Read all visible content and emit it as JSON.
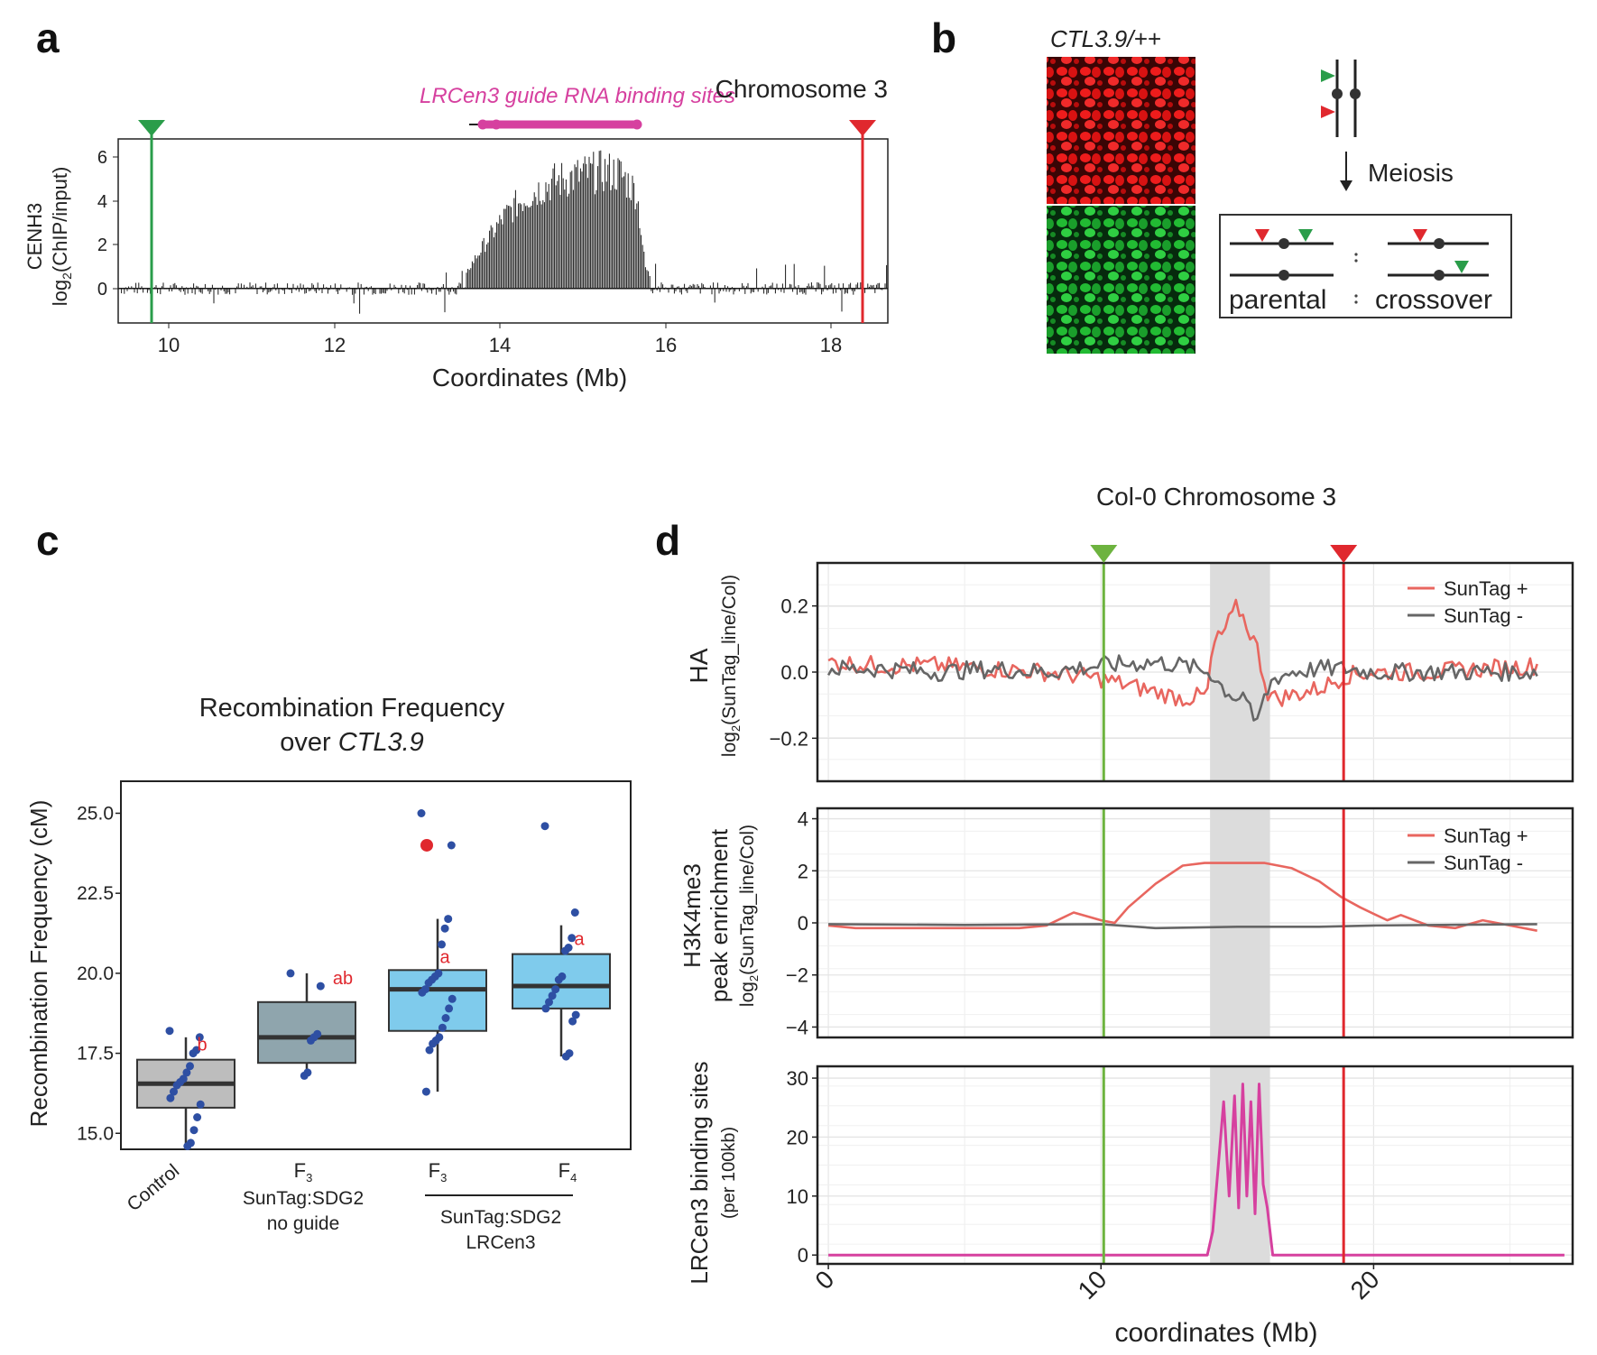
{
  "panel_labels": {
    "a": "a",
    "b": "b",
    "c": "c",
    "d": "d"
  },
  "panel_a": {
    "title": "Chromosome 3",
    "guide_label": "LRCen3 guide RNA binding sites",
    "ylabel_line1": "CENH3",
    "ylabel_line2_prefix": "log",
    "ylabel_line2_sub": "2",
    "ylabel_line2_suffix": "(ChIP/input)",
    "xlabel": "Coordinates (Mb)",
    "xticks": [
      "10",
      "12",
      "14",
      "16",
      "18"
    ],
    "yticks": [
      "0",
      "2",
      "4",
      "6"
    ],
    "colors": {
      "green_marker": "#2a9d4a",
      "red_marker": "#e0282e",
      "guide": "#d6409f",
      "bars": "#1a1a1a"
    }
  },
  "panel_b": {
    "image_label": "CTL3.9/++",
    "meiosis_label": "Meiosis",
    "parental_label": "parental",
    "crossover_label": "crossover",
    "colors": {
      "red_channel": "#ee1c1c",
      "green_channel": "#22bb33"
    }
  },
  "panel_c": {
    "title_line1": "Recombination Frequency",
    "title_line2_prefix": "over ",
    "title_line2_italic": "CTL3.9",
    "ylabel": "Recombination Frequency (cM)",
    "yticks": [
      "15.0",
      "17.5",
      "20.0",
      "22.5",
      "25.0"
    ],
    "xlabels": {
      "control": "Control",
      "g2_gen": "F",
      "g2_sub": "3",
      "g2_line1": "SunTag:SDG2",
      "g2_line2": "no guide",
      "g3_gen": "F",
      "g3_sub": "3",
      "g4_gen": "F",
      "g4_sub": "4",
      "g34_line1": "SunTag:SDG2",
      "g34_line2": "LRCen3"
    },
    "colors": {
      "gray": "#bdbdbd",
      "slate": "#8fa5ad",
      "blue": "#7fcbec",
      "points": "#2e4fa3",
      "letters": "#e0282e"
    }
  },
  "panel_d": {
    "title": "Col-0 Chromosome 3",
    "xlabel": "coordinates (Mb)",
    "xticks": [
      "0",
      "10",
      "20"
    ],
    "top": {
      "ylabel_line1": "HA",
      "ylabel_line2_prefix": "log",
      "ylabel_line2_sub": "2",
      "ylabel_line2_suffix": "(SunTag_line/Col)",
      "yticks": [
        "0.2",
        "0.0",
        "−0.2"
      ],
      "legend": [
        "SunTag +",
        "SunTag -"
      ]
    },
    "mid": {
      "ylabel_line1": "H3K4me3",
      "ylabel_line2": "peak enrichment",
      "ylabel_line3_prefix": "log",
      "ylabel_line3_sub": "2",
      "ylabel_line3_suffix": "(SunTag_line/Col)",
      "yticks": [
        "4",
        "2",
        "0",
        "−2",
        "−4"
      ],
      "legend": [
        "SunTag +",
        "SunTag -"
      ]
    },
    "bot": {
      "ylabel_line1": "LRCen3 binding sites",
      "ylabel_line2": "(per 100kb)",
      "yticks": [
        "30",
        "20",
        "10",
        "0"
      ]
    },
    "colors": {
      "plus": "#e8665f",
      "minus": "#666666",
      "binding": "#d6409f",
      "green_marker": "#6db33f",
      "red_marker": "#e0282e",
      "shade": "#dcdcdc"
    }
  },
  "chart_data": [
    {
      "type": "bar",
      "panel": "a",
      "title": "Chromosome 3",
      "xlabel": "Coordinates (Mb)",
      "ylabel": "CENH3 log2(ChIP/input)",
      "xlim": [
        9.4,
        18.6
      ],
      "ylim": [
        -1.5,
        6.5
      ],
      "markers": {
        "green_Mb": 9.78,
        "red_Mb": 18.4
      },
      "guide_sites_Mb": [
        13.7,
        15.65
      ],
      "profile": {
        "x": [
          9.4,
          13.5,
          13.6,
          13.8,
          14.0,
          14.2,
          14.4,
          14.6,
          14.8,
          15.0,
          15.2,
          15.4,
          15.6,
          15.7,
          15.8,
          16.0,
          18.6
        ],
        "y": [
          0.0,
          0.0,
          1.0,
          2.2,
          3.3,
          4.1,
          4.6,
          5.0,
          5.2,
          5.4,
          5.5,
          5.4,
          4.5,
          1.0,
          0.3,
          0.0,
          0.0
        ]
      }
    },
    {
      "type": "box",
      "panel": "c",
      "title": "Recombination Frequency over CTL3.9",
      "ylabel": "Recombination Frequency (cM)",
      "ylim": [
        14.5,
        26.0
      ],
      "groups": [
        {
          "name": "Control",
          "q1": 15.8,
          "median": 16.55,
          "q3": 17.3,
          "whisker_low": 14.6,
          "whisker_high": 18.0,
          "letter": "b",
          "points": [
            18.2,
            18.0,
            17.6,
            17.5,
            17.1,
            16.9,
            16.7,
            16.6,
            16.5,
            16.3,
            16.1,
            15.9,
            15.5,
            15.1,
            14.7,
            14.6
          ]
        },
        {
          "name": "F3 SunTag:SDG2 no guide",
          "q1": 17.2,
          "median": 18.0,
          "q3": 19.1,
          "whisker_low": 16.8,
          "whisker_high": 20.0,
          "letter": "ab",
          "points": [
            20.0,
            19.6,
            18.1,
            18.0,
            17.9,
            16.9,
            16.8
          ]
        },
        {
          "name": "F3 SunTag:SDG2 LRCen3",
          "q1": 18.2,
          "median": 19.5,
          "q3": 20.1,
          "whisker_low": 16.3,
          "whisker_high": 21.7,
          "letter": "a",
          "points": [
            25.0,
            24.0,
            21.7,
            21.4,
            20.9,
            20.0,
            19.9,
            19.8,
            19.7,
            19.5,
            19.4,
            19.2,
            18.9,
            18.6,
            18.3,
            18.0,
            17.9,
            17.8,
            17.6,
            16.3
          ],
          "highlight_point": 24.0
        },
        {
          "name": "F4 SunTag:SDG2 LRCen3",
          "q1": 18.9,
          "median": 19.6,
          "q3": 20.6,
          "whisker_low": 17.4,
          "whisker_high": 21.5,
          "letter": "a",
          "points": [
            24.6,
            21.9,
            21.1,
            20.8,
            20.7,
            19.9,
            19.8,
            19.5,
            19.3,
            19.1,
            18.9,
            18.7,
            18.5,
            17.5,
            17.4
          ]
        }
      ]
    },
    {
      "type": "line",
      "panel": "d-top",
      "title": "Col-0 Chromosome 3",
      "xlabel": "coordinates (Mb)",
      "ylabel": "HA log2(SunTag_line/Col)",
      "xlim": [
        -0.4,
        27.3
      ],
      "ylim": [
        -0.33,
        0.33
      ],
      "shade_Mb": [
        14.0,
        16.2
      ],
      "markers": {
        "green_Mb": 10.1,
        "red_Mb": 18.9
      },
      "series": [
        {
          "name": "SunTag +",
          "x": [
            0,
            2,
            4,
            6,
            8,
            10,
            11,
            12,
            13,
            13.9,
            14.1,
            14.5,
            15.0,
            15.3,
            15.7,
            16.1,
            16.4,
            17,
            18,
            19,
            20,
            22,
            24,
            26
          ],
          "y": [
            0.03,
            0.02,
            0.02,
            0.01,
            0.0,
            -0.02,
            -0.04,
            -0.06,
            -0.08,
            -0.07,
            0.08,
            0.12,
            0.2,
            0.15,
            0.08,
            -0.06,
            -0.08,
            -0.07,
            -0.05,
            -0.01,
            0.0,
            0.0,
            0.01,
            0.02
          ]
        },
        {
          "name": "SunTag -",
          "x": [
            0,
            2,
            4,
            6,
            8,
            10,
            12,
            13,
            14,
            14.5,
            15,
            15.3,
            15.6,
            16.0,
            16.3,
            17,
            18,
            19,
            20,
            22,
            24,
            26
          ],
          "y": [
            0.01,
            0.01,
            0.0,
            0.01,
            0.0,
            0.02,
            0.03,
            0.02,
            0.0,
            -0.05,
            -0.08,
            -0.06,
            -0.17,
            -0.08,
            -0.02,
            0.0,
            0.01,
            0.01,
            0.0,
            0.0,
            0.0,
            0.0
          ]
        }
      ]
    },
    {
      "type": "line",
      "panel": "d-mid",
      "ylabel": "H3K4me3 peak enrichment log2(SunTag_line/Col)",
      "xlim": [
        -0.4,
        27.3
      ],
      "ylim": [
        -4.4,
        4.4
      ],
      "series": [
        {
          "name": "SunTag +",
          "x": [
            0,
            1,
            3,
            5,
            7,
            8,
            9,
            10,
            10.5,
            11,
            12,
            13,
            13.8,
            14.5,
            16,
            17,
            18,
            18.8,
            19.5,
            20.5,
            21,
            22,
            23,
            24,
            25,
            26
          ],
          "y": [
            -0.1,
            -0.2,
            -0.2,
            -0.2,
            -0.2,
            -0.1,
            0.4,
            0.1,
            0.0,
            0.6,
            1.5,
            2.2,
            2.3,
            2.3,
            2.3,
            2.1,
            1.6,
            1.0,
            0.6,
            0.1,
            0.3,
            -0.1,
            -0.2,
            0.1,
            -0.1,
            -0.3
          ]
        },
        {
          "name": "SunTag -",
          "x": [
            0,
            5,
            10,
            12,
            15,
            18,
            20,
            26
          ],
          "y": [
            -0.05,
            -0.08,
            -0.05,
            -0.2,
            -0.15,
            -0.15,
            -0.1,
            -0.05
          ]
        }
      ]
    },
    {
      "type": "line",
      "panel": "d-bot",
      "ylabel": "LRCen3 binding sites (per 100kb)",
      "xlim": [
        -0.4,
        27.3
      ],
      "ylim": [
        -1.5,
        32
      ],
      "series": [
        {
          "name": "LRCen3 binding sites",
          "x": [
            0,
            13.9,
            14.1,
            14.3,
            14.5,
            14.7,
            14.9,
            15.05,
            15.2,
            15.35,
            15.5,
            15.65,
            15.8,
            15.95,
            16.1,
            16.3,
            27
          ],
          "y": [
            0,
            0,
            4,
            15,
            26,
            10,
            27,
            8,
            29,
            10,
            26,
            7,
            29,
            12,
            8,
            0,
            0
          ]
        }
      ]
    }
  ]
}
